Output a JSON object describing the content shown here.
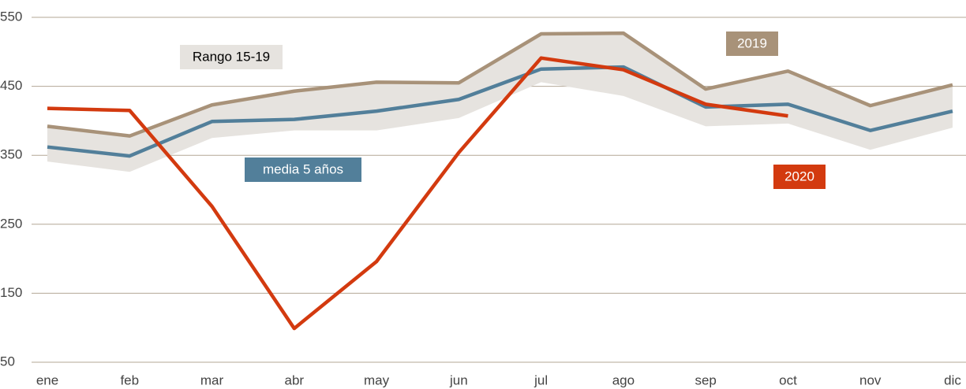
{
  "chart_data": {
    "type": "line",
    "categories": [
      "ene",
      "feb",
      "mar",
      "abr",
      "may",
      "jun",
      "jul",
      "ago",
      "sep",
      "oct",
      "nov",
      "dic"
    ],
    "range": {
      "name": "Rango 15-19",
      "color": "#e6e3df",
      "high": [
        392,
        378,
        423,
        443,
        456,
        455,
        526,
        527,
        446,
        472,
        422,
        452
      ],
      "low": [
        341,
        326,
        375,
        386,
        386,
        404,
        456,
        436,
        392,
        396,
        358,
        390
      ]
    },
    "series": [
      {
        "name": "2019",
        "color": "#a89279",
        "values": [
          392,
          378,
          423,
          443,
          456,
          455,
          526,
          527,
          446,
          472,
          422,
          452
        ]
      },
      {
        "name": "media 5 años",
        "color": "#527f9a",
        "values": [
          362,
          349,
          399,
          402,
          414,
          431,
          475,
          478,
          420,
          424,
          386,
          414
        ]
      },
      {
        "name": "2020",
        "color": "#d33a0f",
        "values": [
          418,
          415,
          276,
          99,
          196,
          354,
          491,
          474,
          424,
          407,
          null,
          null
        ]
      }
    ],
    "ylim": [
      50,
      550
    ],
    "yticks": [
      50,
      150,
      250,
      350,
      450,
      550
    ],
    "grid": true
  }
}
